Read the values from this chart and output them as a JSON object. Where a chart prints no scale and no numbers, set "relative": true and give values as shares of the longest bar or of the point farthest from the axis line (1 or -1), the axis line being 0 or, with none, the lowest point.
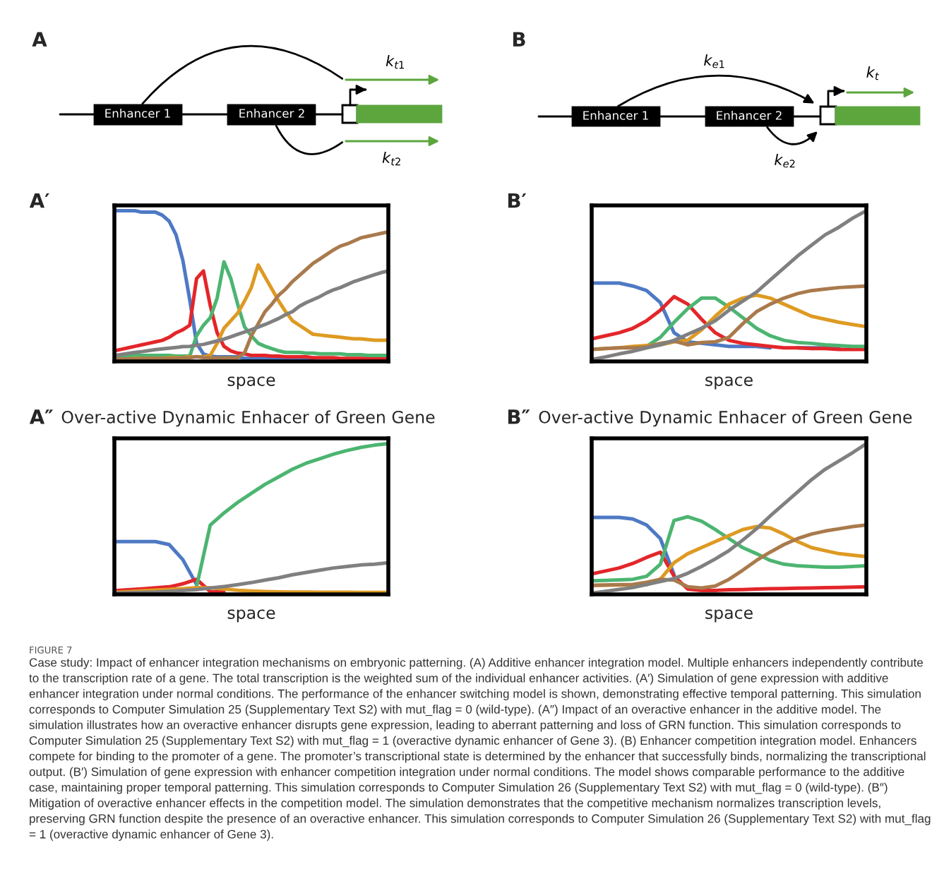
{
  "chart_data": [
    {
      "type": "other",
      "title": "A",
      "annotations": [
        "Enhancer 1",
        "Enhancer 2",
        "k$_{t1}$",
        "k$_{t2}$"
      ]
    },
    {
      "type": "other",
      "title": "B",
      "annotations": [
        "Enhancer 1",
        "Enhancer 2",
        "k$_{e1}$",
        "k$_{e2}$",
        "k$_{t}$"
      ]
    },
    {
      "type": "line",
      "relative": true,
      "title": "A′",
      "xlabel": "space",
      "tick_labels": false,
      "categories": [
        null,
        null,
        null,
        null,
        null,
        null,
        null,
        null,
        null,
        null,
        null,
        null,
        null,
        null,
        null,
        null,
        null,
        null,
        null,
        null,
        null,
        null,
        null,
        null,
        null,
        null,
        null,
        null,
        null,
        null,
        null,
        null,
        null,
        null,
        null,
        null,
        null,
        null,
        null,
        null,
        null
      ],
      "series": [
        {
          "color": "#4e79c4",
          "values": [
            1.0,
            1.0,
            1.0,
            1.0,
            0.99,
            0.99,
            0.99,
            0.97,
            0.93,
            0.84,
            0.67,
            0.41,
            0.12,
            0.05,
            0.035,
            0.03,
            0.03,
            0.03,
            0.03,
            0.02,
            0.02,
            0.02,
            0.02,
            0.02,
            0.02,
            0.02,
            0.02,
            0.02,
            0.02,
            0.01,
            null,
            null,
            null,
            null,
            null,
            null,
            null,
            null,
            null,
            null,
            null
          ]
        },
        {
          "color": "#e3262a",
          "values": [
            0.07,
            0.08,
            0.09,
            0.1,
            0.11,
            0.12,
            0.13,
            0.14,
            0.16,
            0.19,
            0.21,
            0.24,
            0.55,
            0.6,
            0.37,
            0.19,
            0.1,
            0.07,
            0.055,
            0.05,
            0.04,
            0.04,
            0.04,
            0.035,
            0.035,
            0.03,
            0.03,
            0.03,
            0.03,
            0.025,
            0.025,
            0.025,
            0.025,
            0.02,
            0.02,
            0.02,
            0.02,
            0.02,
            0.016,
            0.016,
            0.016
          ]
        },
        {
          "color": "#4cb571",
          "values": [
            0.04,
            0.04,
            0.04,
            0.04,
            0.04,
            0.04,
            0.04,
            0.04,
            0.04,
            0.035,
            0.035,
            0.035,
            0.17,
            0.24,
            0.29,
            0.42,
            0.66,
            0.55,
            0.38,
            0.23,
            0.17,
            0.12,
            0.1,
            0.085,
            0.07,
            0.06,
            0.06,
            0.06,
            0.055,
            0.055,
            0.05,
            0.05,
            0.05,
            0.05,
            0.045,
            0.045,
            0.045,
            0.04,
            0.04,
            0.04,
            0.04
          ]
        },
        {
          "color": "#de9a22",
          "values": [
            0.016,
            0.016,
            0.016,
            0.02,
            0.02,
            0.02,
            0.02,
            0.02,
            0.025,
            0.025,
            0.025,
            0.03,
            0.03,
            0.03,
            0.04,
            0.12,
            0.22,
            0.27,
            0.32,
            0.4,
            0.49,
            0.64,
            0.56,
            0.48,
            0.4,
            0.33,
            0.27,
            0.24,
            0.21,
            0.18,
            0.175,
            0.17,
            0.165,
            0.16,
            0.155,
            0.15,
            0.15,
            0.145,
            0.14,
            0.14,
            0.14
          ]
        },
        {
          "color": "#a97a4c",
          "values": [
            0.016,
            0.016,
            0.016,
            0.016,
            0.02,
            0.02,
            0.02,
            0.02,
            0.02,
            0.02,
            0.024,
            0.024,
            0.032,
            0.026,
            0.024,
            0.024,
            0.024,
            0.024,
            0.025,
            0.056,
            0.17,
            0.25,
            0.33,
            0.38,
            0.44,
            0.48,
            0.53,
            0.57,
            0.61,
            0.65,
            0.68,
            0.71,
            0.74,
            0.765,
            0.78,
            0.8,
            0.82,
            0.83,
            0.84,
            0.85,
            0.86
          ]
        },
        {
          "color": "#808080",
          "values": [
            0.04,
            0.046,
            0.053,
            0.06,
            0.065,
            0.071,
            0.078,
            0.083,
            0.088,
            0.093,
            0.098,
            0.1,
            0.107,
            0.113,
            0.124,
            0.136,
            0.148,
            0.163,
            0.18,
            0.195,
            0.21,
            0.228,
            0.245,
            0.265,
            0.285,
            0.31,
            0.33,
            0.365,
            0.39,
            0.41,
            0.43,
            0.455,
            0.475,
            0.49,
            0.51,
            0.53,
            0.545,
            0.56,
            0.575,
            0.59,
            0.6
          ]
        }
      ]
    },
    {
      "type": "line",
      "relative": true,
      "title": "B′",
      "xlabel": "space",
      "tick_labels": false,
      "categories": [
        null,
        null,
        null,
        null,
        null,
        null,
        null,
        null,
        null,
        null,
        null,
        null,
        null,
        null,
        null,
        null,
        null,
        null,
        null,
        null,
        null
      ],
      "series": [
        {
          "color": "#4e79c4",
          "values": [
            0.52,
            0.52,
            0.52,
            0.5,
            0.47,
            0.39,
            0.19,
            0.13,
            0.12,
            0.11,
            0.1,
            0.1,
            0.1,
            0.09,
            null,
            0.09,
            0.09,
            0.09,
            0.09,
            null,
            null
          ]
        },
        {
          "color": "#e3262a",
          "values": [
            0.15,
            0.17,
            0.19,
            0.22,
            0.27,
            0.34,
            0.43,
            0.38,
            0.28,
            0.19,
            0.14,
            0.12,
            0.11,
            0.1,
            0.09,
            0.09,
            0.085,
            0.085,
            0.08,
            0.08,
            0.08
          ]
        },
        {
          "color": "#4cb571",
          "values": [
            null,
            null,
            null,
            0.095,
            0.1,
            0.16,
            0.26,
            0.35,
            0.42,
            0.42,
            0.36,
            0.29,
            0.22,
            0.17,
            0.14,
            0.125,
            0.12,
            0.11,
            0.105,
            0.1,
            0.1
          ]
        },
        {
          "color": "#de9a22",
          "values": [
            0.08,
            0.085,
            0.09,
            0.1,
            0.105,
            0.11,
            0.13,
            0.14,
            0.21,
            0.3,
            0.38,
            0.42,
            0.44,
            0.42,
            0.38,
            0.34,
            0.3,
            0.28,
            0.26,
            0.245,
            0.23
          ]
        },
        {
          "color": "#a97a4c",
          "values": [
            0.08,
            0.085,
            0.09,
            0.09,
            0.095,
            0.12,
            0.135,
            0.11,
            0.125,
            0.13,
            0.16,
            0.25,
            0.33,
            0.38,
            0.42,
            0.45,
            0.47,
            0.48,
            0.49,
            0.495,
            0.5
          ]
        },
        {
          "color": "#808080",
          "values": [
            0.013,
            0.03,
            0.05,
            0.067,
            0.09,
            0.11,
            0.14,
            0.18,
            0.22,
            0.27,
            0.34,
            0.4,
            0.46,
            0.54,
            0.62,
            0.7,
            0.77,
            0.84,
            0.89,
            0.95,
            1.0
          ]
        }
      ]
    },
    {
      "type": "line",
      "relative": true,
      "title": "A″",
      "subtitle": "Over-active Dynamic Enhacer of Green Gene",
      "xlabel": "space",
      "tick_labels": false,
      "categories": [
        null,
        null,
        null,
        null,
        null,
        null,
        null,
        null,
        null,
        null,
        null,
        null,
        null,
        null,
        null,
        null,
        null,
        null,
        null,
        null,
        null
      ],
      "series": [
        {
          "color": "#4e79c4",
          "values": [
            0.35,
            0.35,
            0.35,
            0.35,
            0.33,
            0.23,
            0.065,
            null,
            null,
            null,
            null,
            null,
            null,
            null,
            null,
            null,
            null,
            null,
            null,
            null,
            null
          ]
        },
        {
          "color": "#e3262a",
          "values": [
            0.024,
            0.03,
            0.036,
            0.043,
            0.05,
            0.07,
            0.1,
            0.018,
            0.015,
            null,
            null,
            null,
            null,
            null,
            null,
            null,
            null,
            null,
            null,
            null,
            null
          ]
        },
        {
          "color": "#4cb571",
          "values": [
            null,
            null,
            null,
            null,
            null,
            null,
            0.05,
            0.46,
            0.54,
            0.61,
            0.67,
            0.73,
            0.78,
            0.83,
            0.87,
            0.9,
            0.93,
            0.955,
            0.975,
            0.99,
            1.0
          ]
        },
        {
          "color": "#de9a22",
          "values": [
            0.013,
            0.018,
            0.023,
            0.028,
            0.033,
            0.038,
            0.044,
            0.043,
            0.036,
            0.027,
            0.022,
            0.019,
            0.016,
            0.015,
            0.015,
            0.014,
            0.014,
            0.014,
            0.013,
            0.013,
            0.013
          ]
        },
        {
          "color": "#808080",
          "values": [
            0.008,
            0.01,
            0.013,
            0.015,
            0.02,
            0.026,
            0.032,
            0.042,
            0.052,
            0.064,
            0.078,
            0.095,
            0.11,
            0.13,
            0.145,
            0.16,
            0.175,
            0.185,
            0.195,
            0.2,
            0.21
          ]
        }
      ]
    },
    {
      "type": "line",
      "relative": true,
      "title": "B″",
      "subtitle": "Over-active Dynamic Enhacer of Green Gene",
      "xlabel": "space",
      "tick_labels": false,
      "categories": [
        null,
        null,
        null,
        null,
        null,
        null,
        null,
        null,
        null,
        null,
        null,
        null,
        null,
        null,
        null,
        null,
        null,
        null,
        null,
        null,
        null
      ],
      "series": [
        {
          "color": "#4e79c4",
          "values": [
            0.51,
            0.51,
            0.51,
            0.5,
            0.46,
            0.37,
            0.13,
            null,
            null,
            null,
            null,
            null,
            null,
            null,
            null,
            null,
            null,
            null,
            null,
            null,
            null
          ]
        },
        {
          "color": "#e3262a",
          "values": [
            0.135,
            0.155,
            0.175,
            0.205,
            0.245,
            0.28,
            0.12,
            0.035,
            0.026,
            0.026,
            0.03,
            0.032,
            0.035,
            0.037,
            0.039,
            0.041,
            0.042,
            0.044,
            0.046,
            0.048,
            0.05
          ]
        },
        {
          "color": "#4cb571",
          "values": [
            0.09,
            0.093,
            0.096,
            0.1,
            0.12,
            0.2,
            0.49,
            0.515,
            0.485,
            0.43,
            0.37,
            0.31,
            0.27,
            0.225,
            0.2,
            0.19,
            0.185,
            0.18,
            0.18,
            0.185,
            0.19
          ]
        },
        {
          "color": "#de9a22",
          "values": [
            0.06,
            0.061,
            0.062,
            0.063,
            0.064,
            0.1,
            0.21,
            0.27,
            0.31,
            0.35,
            0.39,
            0.43,
            0.45,
            0.44,
            0.4,
            0.35,
            0.31,
            0.29,
            0.27,
            0.26,
            0.25
          ]
        },
        {
          "color": "#a97a4c",
          "values": [
            0.06,
            0.062,
            0.064,
            0.066,
            0.08,
            0.1,
            0.095,
            0.05,
            0.042,
            0.055,
            0.1,
            0.16,
            0.225,
            0.28,
            0.33,
            0.37,
            0.4,
            0.42,
            0.435,
            0.45,
            0.46
          ]
        },
        {
          "color": "#808080",
          "values": [
            0.008,
            0.02,
            0.033,
            0.045,
            0.065,
            0.085,
            0.105,
            0.14,
            0.185,
            0.235,
            0.29,
            0.36,
            0.435,
            0.52,
            0.6,
            0.68,
            0.76,
            0.83,
            0.885,
            0.94,
            1.0
          ]
        }
      ]
    },
    {
      "type": "other",
      "title": "FIGURE 7",
      "annotations": [
        "Case study: Impact of enhancer integration mechanisms on embryonic patterning. (A) Additive enhancer integration model. Multiple enhancers independently contribute to the transcription rate of a gene. The total transcription is the weighted sum of the individual enhancer activities. (A′) Simulation of gene expression with additive enhancer integration under normal conditions. The performance of the enhancer switching model is shown, demonstrating effective temporal patterning. This simulation corresponds to Computer Simulation 25 (Supplementary Text S2) with mut_flag = 0 (wild-type). (A″) Impact of an overactive enhancer in the additive model. The simulation illustrates how an overactive enhancer disrupts gene expression, leading to aberrant patterning and loss of GRN function. This simulation corresponds to Computer Simulation 25 (Supplementary Text S2) with mut_flag = 1 (overactive dynamic enhancer of Gene 3). (B) Enhancer competition integration model. Enhancers compete for binding to the promoter of a gene. The promoter’s transcriptional state is determined by the enhancer that successfully binds, normalizing the transcriptional output. (B′) Simulation of gene expression with enhancer competition integration under normal conditions. The model shows comparable performance to the additive case, maintaining proper temporal patterning. This simulation corresponds to Computer Simulation 26 (Supplementary Text S2) with mut_flag = 0 (wild-type). (B″) Mitigation of overactive enhancer effects in the competition model. The simulation demonstrates that the competitive mechanism normalizes transcription levels, preserving GRN function despite the presence of an overactive enhancer. This simulation corresponds to Computer Simulation 26 (Supplementary Text S2) with mut_flag = 1 (overactive dynamic enhancer of Gene 3)."
      ]
    }
  ]
}
